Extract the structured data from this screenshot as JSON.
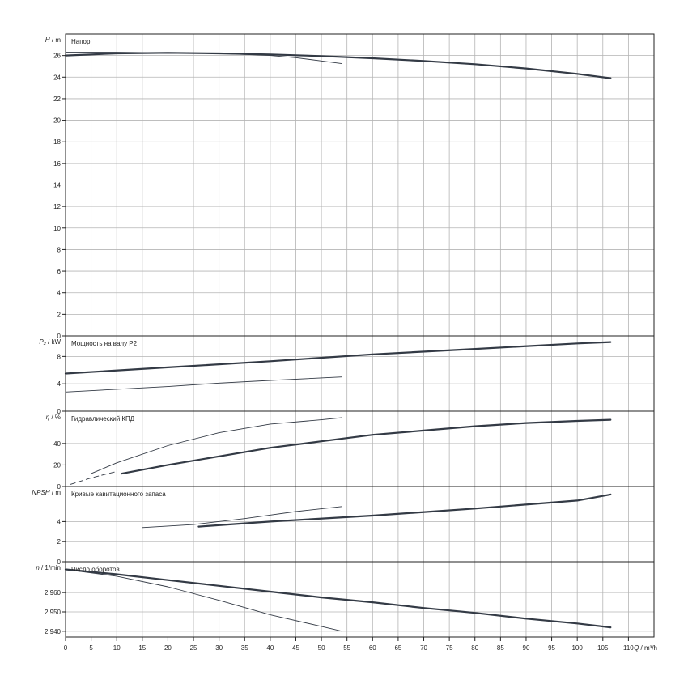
{
  "chart_data": [
    {
      "type": "line",
      "title": "Напор",
      "ylabel_symbol": "H",
      "ylabel_unit": "/ m",
      "ylim": [
        0,
        28
      ],
      "yticks": [
        0,
        2,
        4,
        6,
        8,
        10,
        12,
        14,
        16,
        18,
        20,
        22,
        24,
        26
      ],
      "grid": true,
      "series": [
        {
          "style": "thick",
          "x": [
            0,
            10,
            20,
            30,
            40,
            50,
            60,
            70,
            80,
            90,
            100,
            106.5
          ],
          "y": [
            26.0,
            26.2,
            26.25,
            26.2,
            26.1,
            25.95,
            25.75,
            25.5,
            25.2,
            24.8,
            24.3,
            23.9
          ]
        },
        {
          "style": "thin",
          "x": [
            0,
            10,
            20,
            30,
            40,
            45,
            50,
            54
          ],
          "y": [
            26.3,
            26.3,
            26.25,
            26.2,
            26.0,
            25.8,
            25.5,
            25.25
          ]
        }
      ]
    },
    {
      "type": "line",
      "title": "Мощность на валу P2",
      "ylabel_symbol": "P₂",
      "ylabel_unit": "/ kW",
      "ylim": [
        0,
        11
      ],
      "yticks": [
        0,
        4,
        8
      ],
      "grid": true,
      "series": [
        {
          "style": "thick",
          "x": [
            0,
            20,
            40,
            60,
            80,
            100,
            106.5
          ],
          "y": [
            5.5,
            6.4,
            7.3,
            8.3,
            9.1,
            9.9,
            10.1
          ]
        },
        {
          "style": "thin",
          "x": [
            0,
            10,
            20,
            30,
            40,
            54
          ],
          "y": [
            2.8,
            3.2,
            3.6,
            4.1,
            4.5,
            5.0
          ]
        }
      ]
    },
    {
      "type": "line",
      "title": "Гидравлический КПД",
      "ylabel_symbol": "η",
      "ylabel_unit": "/ %",
      "ylim": [
        0,
        70
      ],
      "yticks": [
        0,
        20,
        40
      ],
      "grid": true,
      "series": [
        {
          "style": "thick",
          "x": [
            11,
            20,
            30,
            40,
            50,
            60,
            70,
            80,
            90,
            100,
            106.5
          ],
          "y": [
            12,
            20,
            28,
            36,
            42,
            48,
            52,
            56,
            59,
            61,
            62
          ]
        },
        {
          "style": "thin",
          "x": [
            5,
            10,
            20,
            30,
            40,
            50,
            54
          ],
          "y": [
            12,
            22,
            38,
            50,
            58,
            62,
            64
          ]
        },
        {
          "style": "thin-dashed",
          "x": [
            1,
            5,
            10
          ],
          "y": [
            2,
            8,
            14
          ]
        }
      ]
    },
    {
      "type": "line",
      "title": "Кривые кавитационного запаса",
      "ylabel_symbol": "NPSH",
      "ylabel_unit": "/ m",
      "ylim": [
        0,
        7.5
      ],
      "yticks": [
        0,
        2,
        4
      ],
      "grid": true,
      "series": [
        {
          "style": "thick",
          "x": [
            26,
            40,
            60,
            80,
            100,
            106.5
          ],
          "y": [
            3.5,
            4.0,
            4.6,
            5.3,
            6.1,
            6.7
          ]
        },
        {
          "style": "thin",
          "x": [
            15,
            25,
            35,
            45,
            54
          ],
          "y": [
            3.4,
            3.7,
            4.3,
            5.0,
            5.5
          ]
        }
      ]
    },
    {
      "type": "line",
      "title": "Число оборотов",
      "ylabel_symbol": "n",
      "ylabel_unit": "/ 1/min",
      "ylim": [
        2937,
        2976
      ],
      "yticks": [
        2940,
        2950,
        2960
      ],
      "ytick_labels": [
        "2 940",
        "2 950",
        "2 960"
      ],
      "grid": true,
      "series": [
        {
          "style": "thick",
          "x": [
            0,
            10,
            20,
            30,
            40,
            50,
            60,
            70,
            80,
            90,
            100,
            106.5
          ],
          "y": [
            2972,
            2969.5,
            2966.5,
            2963.5,
            2960.5,
            2957.5,
            2955,
            2952,
            2949.5,
            2946.5,
            2944,
            2942
          ]
        },
        {
          "style": "thin",
          "x": [
            0,
            10,
            20,
            30,
            40,
            50,
            54
          ],
          "y": [
            2972,
            2968.5,
            2963,
            2956,
            2948.5,
            2942.5,
            2940
          ]
        }
      ]
    }
  ],
  "x_axis": {
    "symbol": "Q",
    "unit": "/ m³/h",
    "xlim": [
      0,
      115
    ],
    "ticks": [
      0,
      5,
      10,
      15,
      20,
      25,
      30,
      35,
      40,
      45,
      50,
      55,
      60,
      65,
      70,
      75,
      80,
      85,
      90,
      95,
      100,
      105,
      110
    ]
  },
  "colors": {
    "curve": "#333a45",
    "grid": "#b4b4b4",
    "frame": "#222222"
  }
}
